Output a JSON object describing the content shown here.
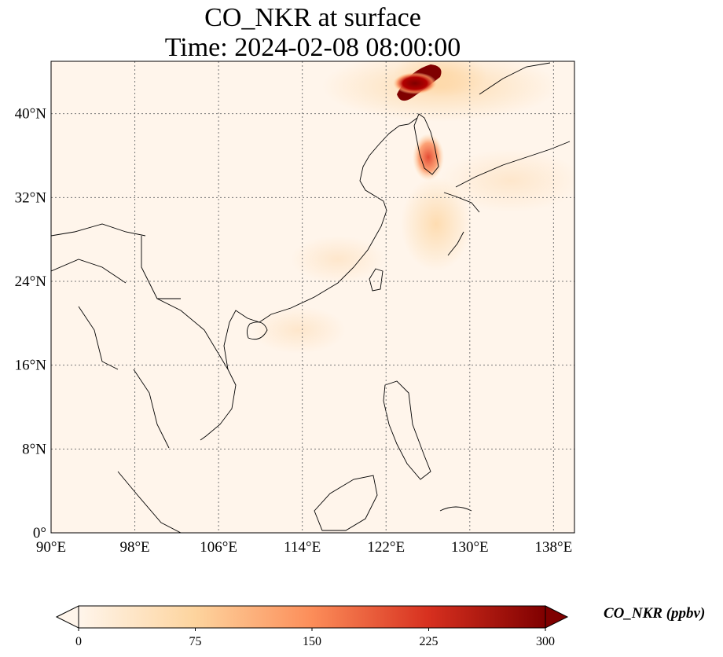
{
  "title": {
    "line1": "CO_NKR at surface",
    "line2": "Time: 2024-02-08 08:00:00"
  },
  "map": {
    "projection": "PlateCarree",
    "lon_range": [
      90,
      140
    ],
    "lat_range": [
      0,
      45
    ],
    "lon_ticks": [
      {
        "value": 90,
        "label": "90°E"
      },
      {
        "value": 98,
        "label": "98°E"
      },
      {
        "value": 106,
        "label": "106°E"
      },
      {
        "value": 114,
        "label": "114°E"
      },
      {
        "value": 122,
        "label": "122°E"
      },
      {
        "value": 130,
        "label": "130°E"
      },
      {
        "value": 138,
        "label": "138°E"
      }
    ],
    "lat_ticks": [
      {
        "value": 0,
        "label": "0°"
      },
      {
        "value": 8,
        "label": "8°N"
      },
      {
        "value": 16,
        "label": "16°N"
      },
      {
        "value": 24,
        "label": "24°N"
      },
      {
        "value": 32,
        "label": "32°N"
      },
      {
        "value": 40,
        "label": "40°N"
      }
    ],
    "gridlines": "dotted gray",
    "background_color": "#fff5eb",
    "high_concentration_regions": [
      {
        "lon": 124.5,
        "lat": 43.5,
        "value": 300
      },
      {
        "lon": 126.8,
        "lat": 37.0,
        "value": 180
      },
      {
        "lon": 125.0,
        "lat": 30.0,
        "value": 60
      },
      {
        "lon": 111.0,
        "lat": 19.0,
        "value": 30
      }
    ]
  },
  "colorbar": {
    "label": "CO_NKR (ppbv)",
    "min": 0,
    "max": 300,
    "extend": "both",
    "colormap": "OrRd",
    "ticks": [
      "0",
      "75",
      "150",
      "225",
      "300"
    ],
    "colors": [
      "#fff5eb",
      "#fdd49e",
      "#fc8d59",
      "#d7301f",
      "#7f0000"
    ]
  }
}
